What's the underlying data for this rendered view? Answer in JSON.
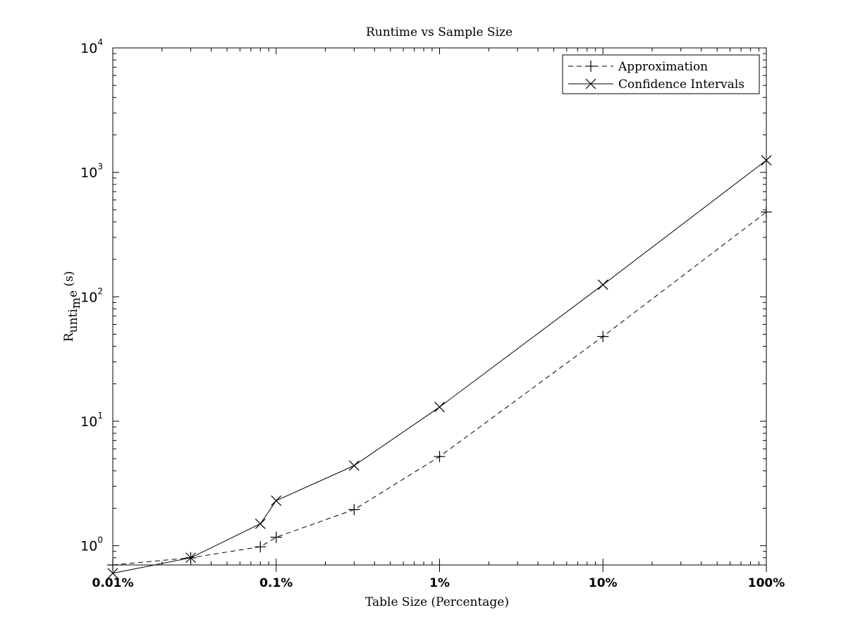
{
  "chart_data": {
    "type": "line",
    "title": "Runtime vs Sample Size",
    "xlabel": "Table Size (Percentage)",
    "ylabel": "R",
    "ylabel_parts": [
      "R",
      "un",
      "ti",
      "m",
      "e",
      " (s)"
    ],
    "x_scale": "log",
    "y_scale": "log",
    "xlim": [
      0.01,
      100
    ],
    "ylim": [
      0.7,
      10000
    ],
    "x_ticks": [
      {
        "value": 0.01,
        "label": "0.01%"
      },
      {
        "value": 0.1,
        "label": "0.1%"
      },
      {
        "value": 1,
        "label": "1%"
      },
      {
        "value": 10,
        "label": "10%"
      },
      {
        "value": 100,
        "label": "100%"
      }
    ],
    "y_ticks": [
      {
        "value": 1,
        "base": "10",
        "exp": "0"
      },
      {
        "value": 10,
        "base": "10",
        "exp": "1"
      },
      {
        "value": 100,
        "base": "10",
        "exp": "2"
      },
      {
        "value": 1000,
        "base": "10",
        "exp": "3"
      },
      {
        "value": 10000,
        "base": "10",
        "exp": "4"
      }
    ],
    "grid": false,
    "legend_position": "top-right",
    "series": [
      {
        "name": "Approximation",
        "line_style": "dashed",
        "marker": "plus",
        "color": "#000000",
        "x": [
          0.01,
          0.03,
          0.08,
          0.1,
          0.3,
          1,
          10,
          100
        ],
        "y": [
          0.7,
          0.8,
          0.98,
          1.17,
          1.95,
          5.2,
          48,
          480
        ]
      },
      {
        "name": "Confidence Intervals",
        "line_style": "solid",
        "marker": "x",
        "color": "#000000",
        "x": [
          0.01,
          0.03,
          0.08,
          0.1,
          0.3,
          1,
          10,
          100
        ],
        "y": [
          0.6,
          0.8,
          1.5,
          2.3,
          4.4,
          13,
          125,
          1250
        ]
      }
    ]
  }
}
